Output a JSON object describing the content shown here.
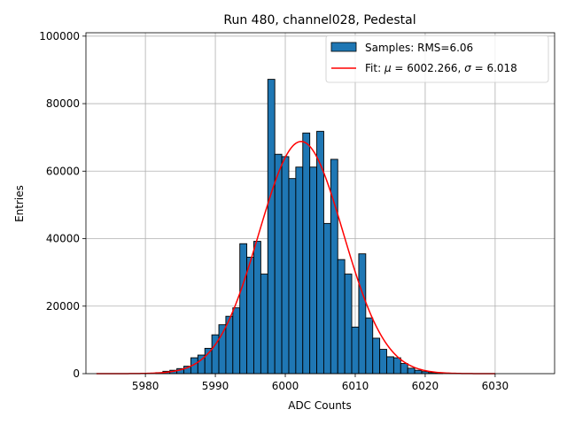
{
  "chart_data": {
    "type": "bar",
    "title": "Run 480, channel028, Pedestal",
    "xlabel": "ADC Counts",
    "ylabel": "Entries",
    "xlim": [
      5971.5,
      6038.5
    ],
    "ylim": [
      0,
      101000
    ],
    "xticks": [
      5980,
      5990,
      6000,
      6010,
      6020,
      6030
    ],
    "yticks": [
      0,
      20000,
      40000,
      60000,
      80000,
      100000
    ],
    "grid": true,
    "legend_position": "top-right",
    "legend": {
      "hist_label": "Samples: RMS=6.06",
      "fit_prefix": "Fit: ",
      "fit_mu_symbol": "μ",
      "fit_mu_value": " = 6002.266, ",
      "fit_sigma_symbol": "σ",
      "fit_sigma_value": " = 6.018"
    },
    "histogram": {
      "name": "Samples: RMS=6.06",
      "bin_width": 1,
      "x": [
        5982,
        5983,
        5984,
        5985,
        5986,
        5987,
        5988,
        5989,
        5990,
        5991,
        5992,
        5993,
        5994,
        5995,
        5996,
        5997,
        5998,
        5999,
        6000,
        6001,
        6002,
        6003,
        6004,
        6005,
        6006,
        6007,
        6008,
        6009,
        6010,
        6011,
        6012,
        6013,
        6014,
        6015,
        6016,
        6017,
        6018,
        6019,
        6020,
        6021,
        6022
      ],
      "values": [
        300,
        700,
        1000,
        1500,
        2200,
        4700,
        5500,
        7500,
        11500,
        14500,
        17000,
        19500,
        38500,
        34500,
        39200,
        29500,
        87200,
        65000,
        64300,
        57800,
        61200,
        71300,
        61200,
        71800,
        44500,
        63500,
        33800,
        29500,
        13800,
        35500,
        16500,
        10500,
        7200,
        5000,
        4700,
        3000,
        1600,
        1000,
        600,
        300,
        150
      ]
    },
    "fit": {
      "name": "Fit",
      "mu": 6002.266,
      "sigma": 6.018,
      "amplitude": 68800,
      "x_range": [
        5973,
        6030
      ]
    },
    "colors": {
      "bar_fill": "#1f77b4",
      "bar_edge": "#000000",
      "fit_line": "#ff0000",
      "grid": "#b0b0b0"
    }
  }
}
